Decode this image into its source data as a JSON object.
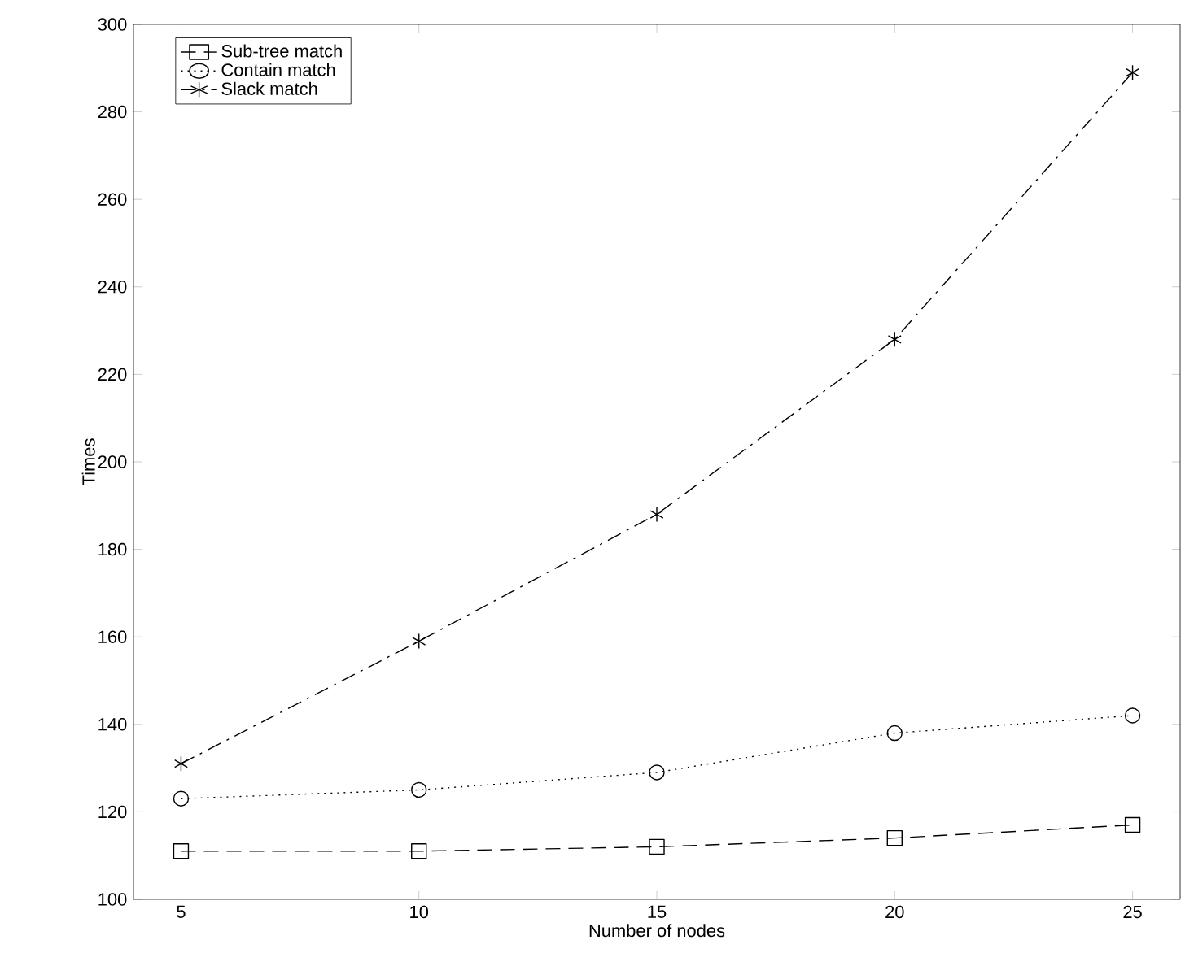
{
  "chart_data": {
    "type": "line",
    "xlabel": "Number of nodes",
    "ylabel": "Times",
    "x": [
      5,
      10,
      15,
      20,
      25
    ],
    "series": [
      {
        "name": "Sub-tree match",
        "color": "#000000",
        "values": [
          111,
          111,
          112,
          114,
          117
        ],
        "marker": "square",
        "line_style": "dashed"
      },
      {
        "name": "Contain match",
        "color": "#000000",
        "values": [
          123,
          125,
          129,
          138,
          142
        ],
        "marker": "circle",
        "line_style": "dotted"
      },
      {
        "name": "Slack match",
        "color": "#000000",
        "values": [
          131,
          159,
          188,
          228,
          289
        ],
        "marker": "cross",
        "line_style": "dashdot"
      }
    ],
    "xlim": [
      4,
      26
    ],
    "xticks": [
      5,
      10,
      15,
      20,
      25
    ],
    "ylim": [
      100,
      300
    ],
    "yticks": [
      100,
      120,
      140,
      160,
      180,
      200,
      220,
      240,
      260,
      280,
      300
    ],
    "grid": false,
    "legend": "top left"
  }
}
